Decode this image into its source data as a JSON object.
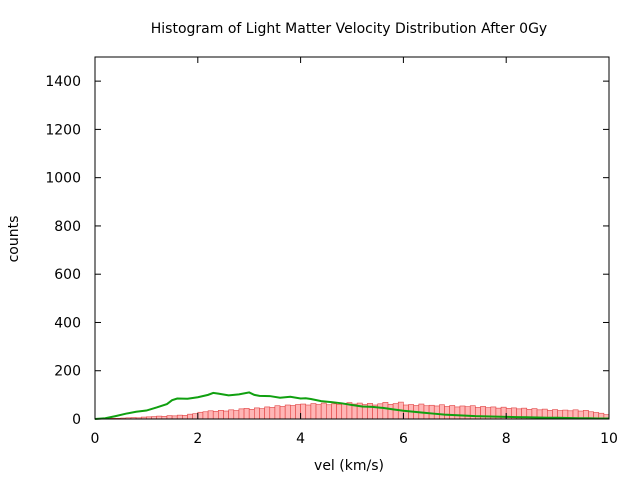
{
  "chart_data": {
    "type": "bar",
    "title": "Histogram of Light Matter Velocity Distribution After 0Gy",
    "xlabel": "vel (km/s)",
    "ylabel": "counts",
    "xlim": [
      0,
      10
    ],
    "ylim": [
      0,
      1500
    ],
    "x_ticks": [
      0,
      2,
      4,
      6,
      8,
      10
    ],
    "y_ticks": [
      0,
      200,
      400,
      600,
      800,
      1000,
      1200,
      1400
    ],
    "grid": false,
    "legend": "none",
    "bin_width": 0.1,
    "histogram": {
      "bin_centers": [
        0.05,
        0.15,
        0.25,
        0.35,
        0.45,
        0.55,
        0.65,
        0.75,
        0.85,
        0.95,
        1.05,
        1.15,
        1.25,
        1.35,
        1.45,
        1.55,
        1.65,
        1.75,
        1.85,
        1.95,
        2.05,
        2.15,
        2.25,
        2.35,
        2.45,
        2.55,
        2.65,
        2.75,
        2.85,
        2.95,
        3.05,
        3.15,
        3.25,
        3.35,
        3.45,
        3.55,
        3.65,
        3.75,
        3.85,
        3.95,
        4.05,
        4.15,
        4.25,
        4.35,
        4.45,
        4.55,
        4.65,
        4.75,
        4.85,
        4.95,
        5.05,
        5.15,
        5.25,
        5.35,
        5.45,
        5.55,
        5.65,
        5.75,
        5.85,
        5.95,
        6.05,
        6.15,
        6.25,
        6.35,
        6.45,
        6.55,
        6.65,
        6.75,
        6.85,
        6.95,
        7.05,
        7.15,
        7.25,
        7.35,
        7.45,
        7.55,
        7.65,
        7.75,
        7.85,
        7.95,
        8.05,
        8.15,
        8.25,
        8.35,
        8.45,
        8.55,
        8.65,
        8.75,
        8.85,
        8.95,
        9.05,
        9.15,
        9.25,
        9.35,
        9.45,
        9.55,
        9.65,
        9.75,
        9.85,
        9.95
      ],
      "counts": [
        0,
        1,
        2,
        3,
        3,
        4,
        5,
        6,
        5,
        8,
        9,
        10,
        12,
        11,
        14,
        13,
        16,
        15,
        20,
        22,
        28,
        30,
        34,
        32,
        36,
        33,
        38,
        35,
        42,
        44,
        40,
        46,
        43,
        50,
        48,
        55,
        52,
        58,
        56,
        60,
        62,
        58,
        64,
        60,
        66,
        59,
        63,
        61,
        64,
        68,
        62,
        66,
        60,
        65,
        58,
        63,
        69,
        61,
        64,
        70,
        58,
        60,
        56,
        62,
        55,
        57,
        54,
        59,
        52,
        56,
        50,
        54,
        51,
        55,
        48,
        52,
        47,
        50,
        45,
        49,
        44,
        46,
        42,
        45,
        40,
        43,
        38,
        41,
        36,
        39,
        35,
        37,
        34,
        38,
        33,
        36,
        30,
        27,
        24,
        18
      ]
    },
    "curve": {
      "x": [
        0.0,
        0.2,
        0.4,
        0.6,
        0.8,
        1.0,
        1.2,
        1.4,
        1.5,
        1.6,
        1.8,
        2.0,
        2.2,
        2.3,
        2.4,
        2.6,
        2.8,
        3.0,
        3.1,
        3.2,
        3.4,
        3.6,
        3.8,
        4.0,
        4.1,
        4.2,
        4.4,
        4.6,
        4.8,
        5.0,
        5.2,
        5.4,
        5.6,
        5.8,
        6.0,
        6.2,
        6.4,
        6.6,
        6.8,
        7.0,
        7.2,
        7.4,
        7.6,
        7.8,
        8.0,
        8.2,
        8.4,
        8.6,
        8.8,
        9.0,
        9.2,
        9.4,
        9.6,
        9.8,
        10.0
      ],
      "y": [
        0,
        3,
        12,
        22,
        30,
        35,
        48,
        62,
        78,
        85,
        84,
        90,
        100,
        108,
        105,
        98,
        102,
        110,
        100,
        96,
        95,
        88,
        92,
        85,
        86,
        83,
        74,
        70,
        65,
        58,
        52,
        50,
        46,
        40,
        34,
        30,
        26,
        22,
        18,
        16,
        14,
        12,
        11,
        10,
        9,
        8,
        7,
        6,
        5,
        5,
        4,
        3,
        3,
        2,
        2
      ]
    }
  }
}
